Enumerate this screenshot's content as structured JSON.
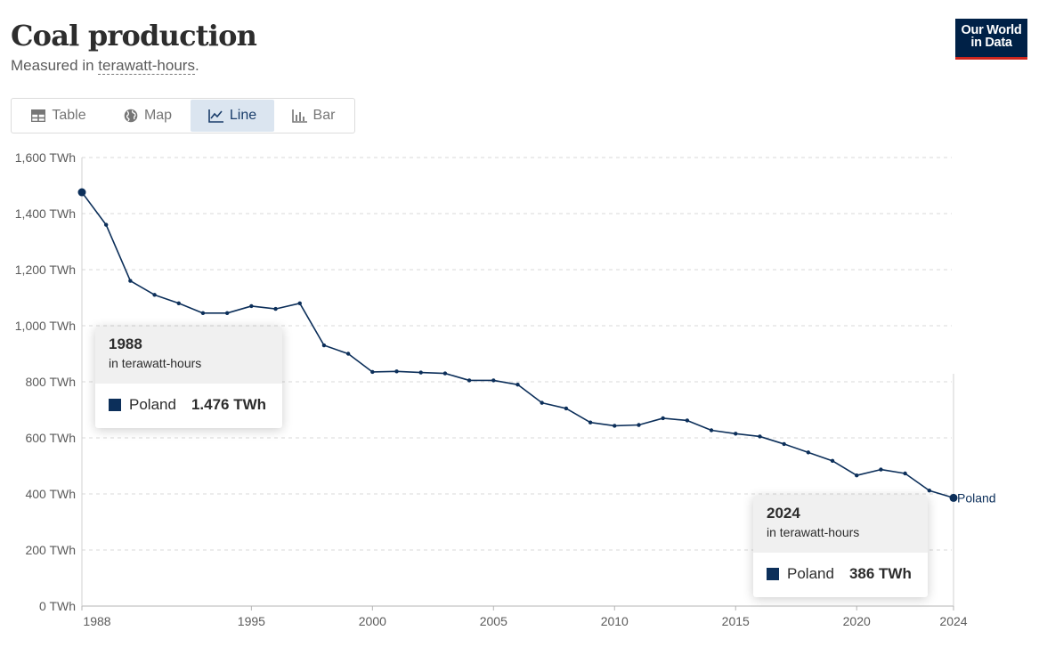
{
  "header": {
    "title": "Coal production",
    "subtitle_prefix": "Measured in ",
    "subtitle_unit": "terawatt-hours",
    "subtitle_suffix": "."
  },
  "logo": {
    "line1": "Our World",
    "line2": "in Data"
  },
  "tabs": [
    {
      "label": "Table",
      "icon": "table-icon",
      "active": false
    },
    {
      "label": "Map",
      "icon": "globe-icon",
      "active": false
    },
    {
      "label": "Line",
      "icon": "line-chart-icon",
      "active": true
    },
    {
      "label": "Bar",
      "icon": "bar-chart-icon",
      "active": false
    }
  ],
  "chart_data": {
    "type": "line",
    "title": "Coal production",
    "ylabel": "",
    "xlabel": "",
    "ylim": [
      0,
      1600
    ],
    "xlim": [
      1988,
      2024
    ],
    "grid": true,
    "y_ticks": [
      0,
      200,
      400,
      600,
      800,
      1000,
      1200,
      1400,
      1600
    ],
    "y_tick_labels": [
      "0 TWh",
      "200 TWh",
      "400 TWh",
      "600 TWh",
      "800 TWh",
      "1,000 TWh",
      "1,200 TWh",
      "1,400 TWh",
      "1,600 TWh"
    ],
    "x_ticks": [
      1988,
      1995,
      2000,
      2005,
      2010,
      2015,
      2020,
      2024
    ],
    "color": "#0c2f5a",
    "series": [
      {
        "name": "Poland",
        "x": [
          1988,
          1989,
          1990,
          1991,
          1992,
          1993,
          1994,
          1995,
          1996,
          1997,
          1998,
          1999,
          2000,
          2001,
          2002,
          2003,
          2004,
          2005,
          2006,
          2007,
          2008,
          2009,
          2010,
          2011,
          2012,
          2013,
          2014,
          2015,
          2016,
          2017,
          2018,
          2019,
          2020,
          2021,
          2022,
          2023,
          2024
        ],
        "y": [
          1476,
          1360,
          1160,
          1110,
          1080,
          1045,
          1045,
          1070,
          1060,
          1080,
          930,
          900,
          835,
          837,
          833,
          830,
          805,
          805,
          790,
          725,
          705,
          655,
          643,
          646,
          670,
          662,
          627,
          615,
          605,
          578,
          548,
          518,
          466,
          487,
          473,
          412,
          386
        ]
      }
    ]
  },
  "tooltips": [
    {
      "year": "1988",
      "unit": "in terawatt-hours",
      "entity": "Poland",
      "value": "1.476 TWh"
    },
    {
      "year": "2024",
      "unit": "in terawatt-hours",
      "entity": "Poland",
      "value": "386 TWh"
    }
  ]
}
